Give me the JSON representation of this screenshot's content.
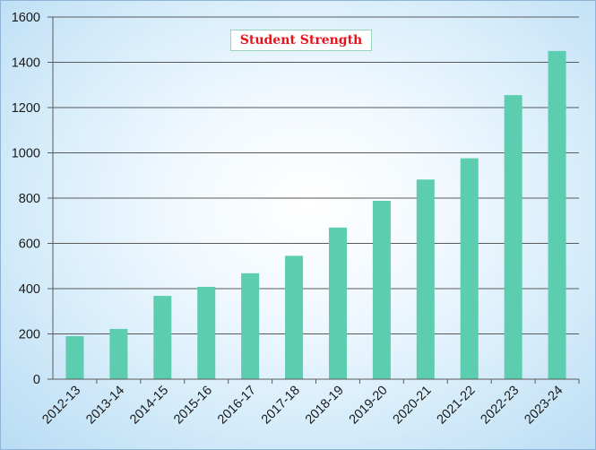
{
  "chart_data": {
    "type": "bar",
    "title": "Student Strength",
    "xlabel": "",
    "ylabel": "",
    "categories": [
      "2012-13",
      "2013-14",
      "2014-15",
      "2015-16",
      "2016-17",
      "2017-18",
      "2018-19",
      "2019-20",
      "2020-21",
      "2021-22",
      "2022-23",
      "2023-24"
    ],
    "values": [
      190,
      222,
      368,
      408,
      468,
      545,
      670,
      788,
      882,
      976,
      1255,
      1450
    ],
    "ylim": [
      0,
      1600
    ],
    "yticks": [
      "0",
      "200",
      "400",
      "600",
      "800",
      "1000",
      "1200",
      "1400",
      "1600"
    ],
    "grid": true,
    "legend": "none",
    "colors": {
      "bar": "#5ccdaf",
      "gridline": "#5a5a5a",
      "title_text": "#e8121e",
      "title_border": "#9ad3bd"
    }
  }
}
